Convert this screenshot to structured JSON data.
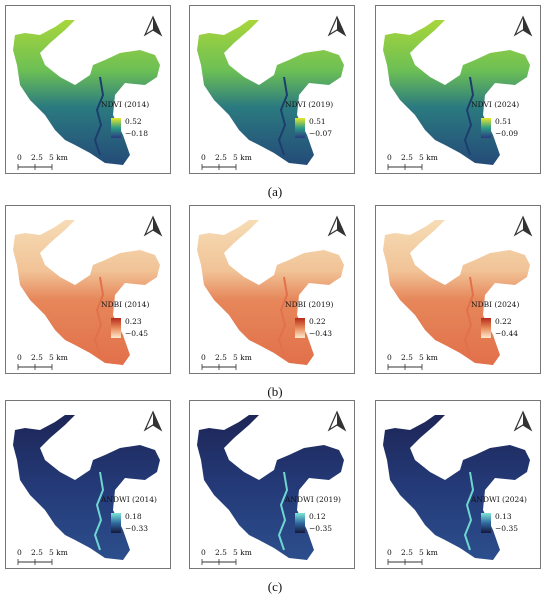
{
  "rows": [
    {
      "caption": "(a)",
      "panels": [
        {
          "label": "NDVI (2014)",
          "max": "0.52",
          "min": "−0.18",
          "scale": [
            "0",
            "2.5",
            "5 km"
          ]
        },
        {
          "label": "NDVI (2019)",
          "max": "0.51",
          "min": "−0.07",
          "scale": [
            "0",
            "2.5",
            "5 km"
          ]
        },
        {
          "label": "NDVI (2024)",
          "max": "0.51",
          "min": "−0.09",
          "scale": [
            "0",
            "2.5",
            "5 km"
          ]
        }
      ]
    },
    {
      "caption": "(b)",
      "panels": [
        {
          "label": "NDBI (2014)",
          "max": "0.23",
          "min": "−0.45",
          "scale": [
            "0",
            "2.5",
            "5 km"
          ]
        },
        {
          "label": "NDBI (2019)",
          "max": "0.22",
          "min": "−0.43",
          "scale": [
            "0",
            "2.5",
            "5 km"
          ]
        },
        {
          "label": "NDBI (2024)",
          "max": "0.22",
          "min": "−0.44",
          "scale": [
            "0",
            "2.5",
            "5 km"
          ]
        }
      ]
    },
    {
      "caption": "(c)",
      "panels": [
        {
          "label": "ANDWI (2014)",
          "max": "0.18",
          "min": "−0.33",
          "scale": [
            "0",
            "2.5",
            "5 km"
          ]
        },
        {
          "label": "ANDWI (2019)",
          "max": "0.12",
          "min": "−0.35",
          "scale": [
            "0",
            "2.5",
            "5 km"
          ]
        },
        {
          "label": "ANDWI (2024)",
          "max": "0.13",
          "min": "−0.35",
          "scale": [
            "0",
            "2.5",
            "5 km"
          ]
        }
      ]
    }
  ]
}
